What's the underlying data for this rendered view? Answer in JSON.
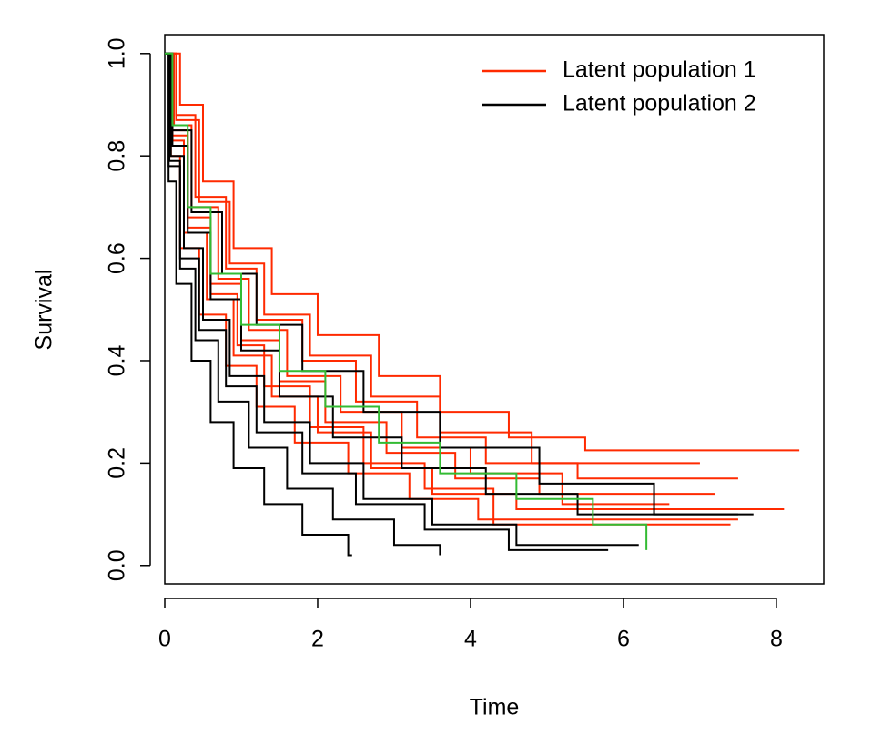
{
  "chart_data": {
    "type": "step",
    "x_label": "Time",
    "y_label": "Survival",
    "xlim": [
      0,
      8.62
    ],
    "ylim": [
      -0.036,
      1.037
    ],
    "xticks": [
      0,
      2,
      4,
      6,
      8
    ],
    "yticks": [
      {
        "value": 0,
        "label": "0.0"
      },
      0.2,
      0.4,
      0.6,
      0.8,
      {
        "value": 1,
        "label": "1.0"
      }
    ],
    "legend": "top-right",
    "series": [
      {
        "name": "Latent population 1",
        "color": "#ff2a00",
        "curves": [
          {
            "x": [
              0,
              0.2,
              0.5,
              0.9,
              1.4,
              2,
              2.8,
              3.6,
              4.5,
              5.5,
              8.3
            ],
            "y": [
              1,
              0.9,
              0.75,
              0.62,
              0.53,
              0.45,
              0.37,
              0.3,
              0.25,
              0.225,
              0.225
            ]
          },
          {
            "x": [
              0,
              0.15,
              0.4,
              0.8,
              1.2,
              1.8,
              2.5,
              3.3,
              4.2,
              5.4,
              7.5
            ],
            "y": [
              1,
              0.88,
              0.72,
              0.58,
              0.48,
              0.4,
              0.32,
              0.25,
              0.2,
              0.17,
              0.17
            ]
          },
          {
            "x": [
              0,
              0.1,
              0.3,
              0.6,
              1.0,
              1.5,
              2.1,
              2.9,
              3.8,
              4.9,
              7.2
            ],
            "y": [
              1,
              0.85,
              0.68,
              0.55,
              0.44,
              0.36,
              0.28,
              0.22,
              0.17,
              0.14,
              0.14
            ]
          },
          {
            "x": [
              0,
              0.12,
              0.35,
              0.7,
              1.1,
              1.6,
              2.3,
              3.1,
              4.0,
              5.2,
              6.6
            ],
            "y": [
              1,
              0.86,
              0.7,
              0.56,
              0.46,
              0.37,
              0.3,
              0.23,
              0.18,
              0.12,
              0.12
            ]
          },
          {
            "x": [
              0,
              0.1,
              0.25,
              0.55,
              0.9,
              1.4,
              2.0,
              2.7,
              3.5,
              4.6,
              8.1
            ],
            "y": [
              1,
              0.83,
              0.65,
              0.52,
              0.41,
              0.33,
              0.26,
              0.19,
              0.14,
              0.11,
              0.11
            ]
          },
          {
            "x": [
              0,
              0.1,
              0.3,
              0.6,
              0.95,
              1.3,
              1.9,
              2.6,
              3.4,
              4.3,
              7.4
            ],
            "y": [
              1,
              0.84,
              0.66,
              0.53,
              0.43,
              0.35,
              0.27,
              0.2,
              0.15,
              0.08,
              0.08
            ]
          },
          {
            "x": [
              0,
              0.15,
              0.45,
              0.85,
              1.3,
              1.9,
              2.7,
              3.6,
              4.8,
              7.0
            ],
            "y": [
              1,
              0.87,
              0.71,
              0.59,
              0.49,
              0.41,
              0.33,
              0.26,
              0.2,
              0.2
            ]
          },
          {
            "x": [
              0,
              0.08,
              0.2,
              0.45,
              0.8,
              1.2,
              1.7,
              2.4,
              3.2,
              4.1,
              7.5
            ],
            "y": [
              1,
              0.8,
              0.62,
              0.49,
              0.39,
              0.31,
              0.24,
              0.18,
              0.13,
              0.09,
              0.09
            ]
          }
        ]
      },
      {
        "name": "Latent population 2",
        "color": "#000000",
        "curves": [
          {
            "x": [
              0,
              0.05,
              0.15,
              0.35,
              0.6,
              0.9,
              1.3,
              1.8,
              2.4,
              2.45
            ],
            "y": [
              1,
              0.75,
              0.55,
              0.4,
              0.28,
              0.19,
              0.12,
              0.06,
              0.02,
              0.02
            ]
          },
          {
            "x": [
              0,
              0.05,
              0.2,
              0.4,
              0.7,
              1.1,
              1.6,
              2.2,
              3.0,
              3.6
            ],
            "y": [
              1,
              0.78,
              0.58,
              0.44,
              0.32,
              0.23,
              0.15,
              0.09,
              0.04,
              0.02
            ]
          },
          {
            "x": [
              0,
              0.08,
              0.25,
              0.5,
              0.85,
              1.3,
              1.9,
              2.6,
              3.5,
              4.6,
              6.2
            ],
            "y": [
              1,
              0.8,
              0.62,
              0.48,
              0.37,
              0.28,
              0.2,
              0.13,
              0.08,
              0.04,
              0.04
            ]
          },
          {
            "x": [
              0,
              0.1,
              0.3,
              0.6,
              1.0,
              1.5,
              2.2,
              3.1,
              4.2,
              5.4,
              7.5
            ],
            "y": [
              1,
              0.82,
              0.65,
              0.52,
              0.42,
              0.33,
              0.25,
              0.19,
              0.14,
              0.1,
              0.1
            ]
          },
          {
            "x": [
              0,
              0.06,
              0.2,
              0.45,
              0.8,
              1.2,
              1.8,
              2.5,
              3.4,
              4.5,
              5.8
            ],
            "y": [
              1,
              0.79,
              0.6,
              0.46,
              0.35,
              0.26,
              0.18,
              0.12,
              0.07,
              0.03,
              0.03
            ]
          },
          {
            "x": [
              0,
              0.1,
              0.35,
              0.75,
              1.2,
              1.8,
              2.6,
              3.6,
              4.9,
              6.4,
              7.7
            ],
            "y": [
              1,
              0.85,
              0.69,
              0.57,
              0.47,
              0.38,
              0.3,
              0.23,
              0.16,
              0.1,
              0.1
            ]
          }
        ]
      },
      {
        "color": "#33bb33",
        "curves": [
          {
            "x": [
              0,
              0.1,
              0.3,
              0.6,
              1.0,
              1.5,
              2.1,
              2.8,
              3.6,
              4.6,
              5.6,
              6.3
            ],
            "y": [
              1,
              0.86,
              0.7,
              0.57,
              0.47,
              0.38,
              0.31,
              0.24,
              0.18,
              0.13,
              0.08,
              0.03
            ]
          }
        ]
      }
    ]
  }
}
